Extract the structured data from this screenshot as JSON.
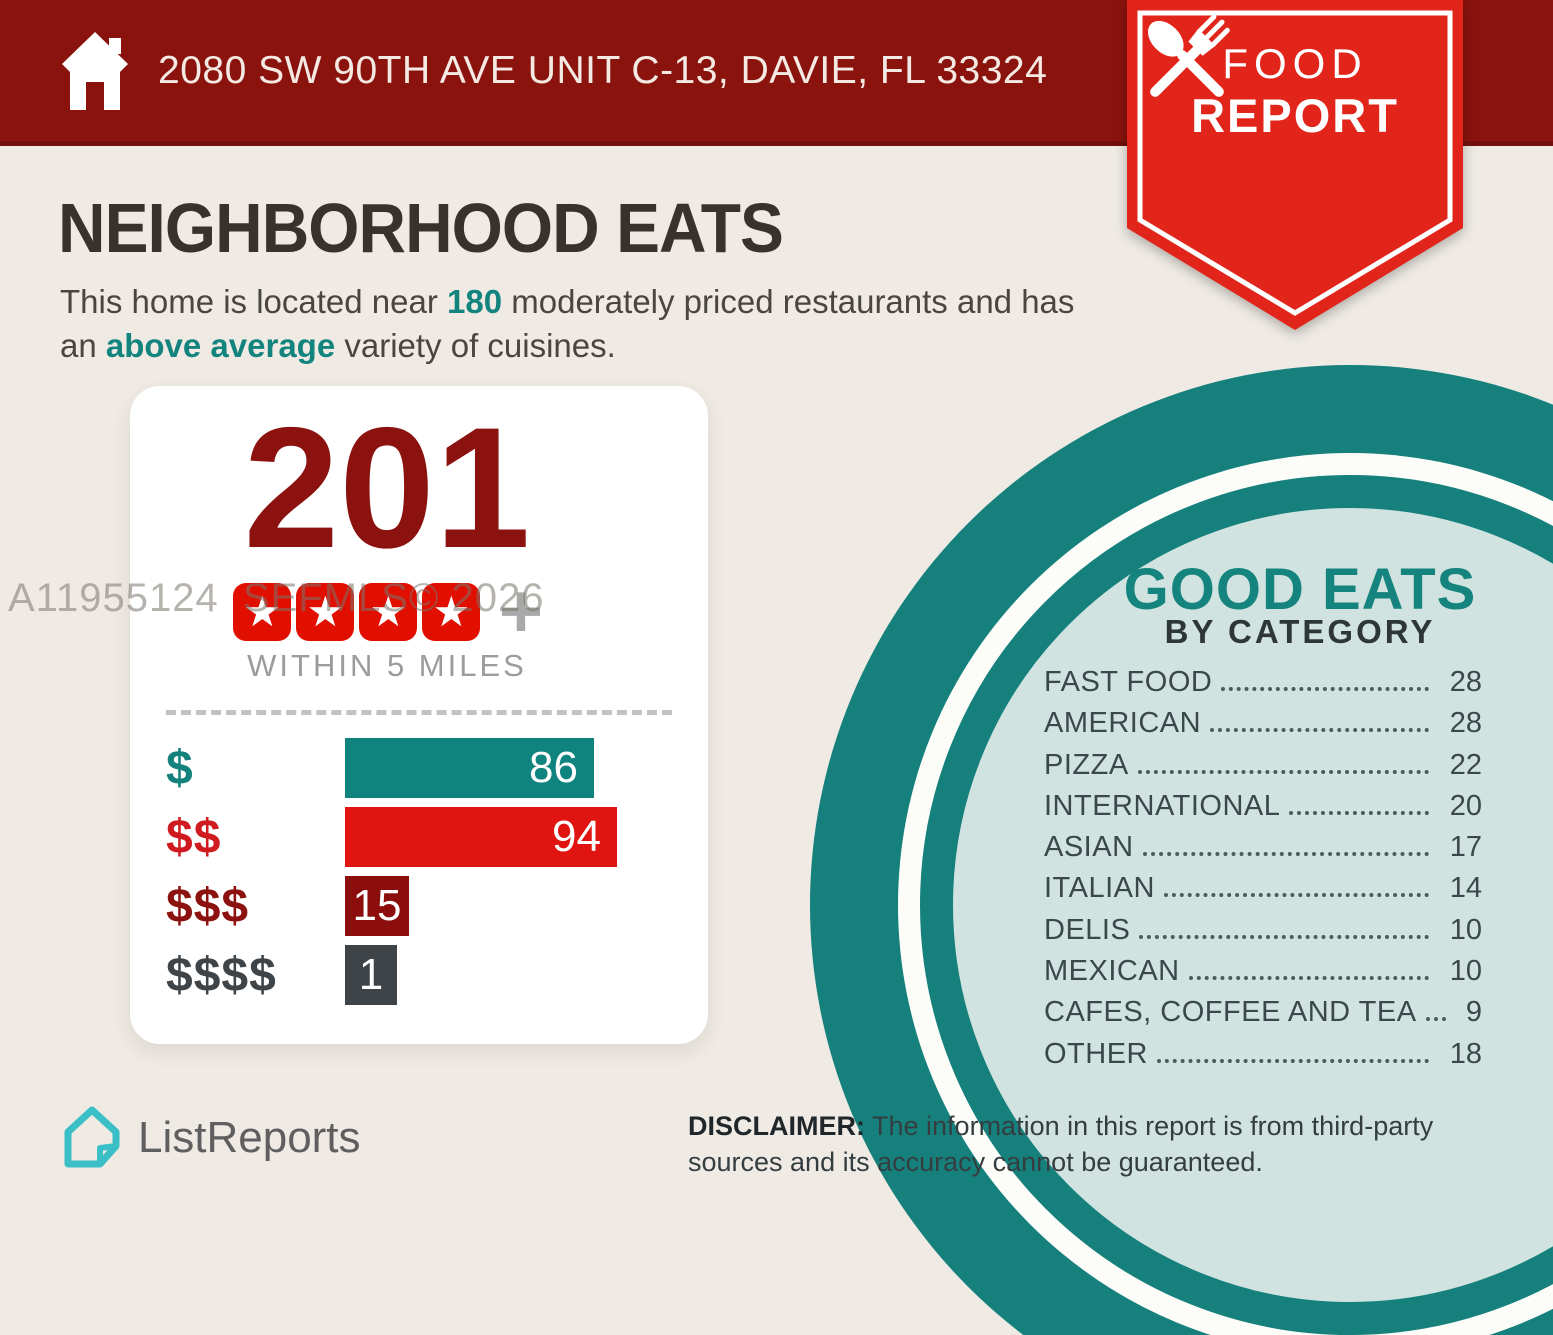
{
  "header": {
    "address": "2080 SW 90TH AVE UNIT C-13, DAVIE, FL 33324",
    "ribbon": {
      "line1": "FOOD",
      "line2": "REPORT"
    }
  },
  "title": "NEIGHBORHOOD EATS",
  "intro": {
    "pre": "This home is located near ",
    "count": "180",
    "mid": " moderately priced restaurants and has an ",
    "highlight": "above average",
    "post": " variety of cuisines."
  },
  "stats_card": {
    "total": "201",
    "rating_stars": 4,
    "rating_suffix": "+",
    "radius_label": "WITHIN 5 MILES",
    "price_bars": [
      {
        "label": "$",
        "value": 86,
        "bar_color": "#0f837e",
        "label_color": "#13827c"
      },
      {
        "label": "$$",
        "value": 94,
        "bar_color": "#e01410",
        "label_color": "#cf1b1f"
      },
      {
        "label": "$$$",
        "value": 15,
        "bar_color": "#8c0e0c",
        "label_color": "#8c1210"
      },
      {
        "label": "$$$$",
        "value": 1,
        "bar_color": "#3d4347",
        "label_color": "#3e4448"
      }
    ]
  },
  "good_eats": {
    "title": "GOOD EATS",
    "subtitle": "BY CATEGORY",
    "categories": [
      {
        "label": "FAST FOOD",
        "value": 28
      },
      {
        "label": "AMERICAN",
        "value": 28
      },
      {
        "label": "PIZZA",
        "value": 22
      },
      {
        "label": "INTERNATIONAL",
        "value": 20
      },
      {
        "label": "ASIAN",
        "value": 17
      },
      {
        "label": "ITALIAN",
        "value": 14
      },
      {
        "label": "DELIS",
        "value": 10
      },
      {
        "label": "MEXICAN",
        "value": 10
      },
      {
        "label": "CAFES, COFFEE AND TEA",
        "value": 9
      },
      {
        "label": "OTHER",
        "value": 18
      }
    ]
  },
  "watermark": "A11955124  SEFMLS© 2026",
  "footer": {
    "brand": "ListReports",
    "disclaimer_label": "DISCLAIMER:",
    "disclaimer_text": " The information in this report is from third-party sources and its accuracy cannot be guaranteed."
  },
  "colors": {
    "banner_red": "#8a130e",
    "ribbon_red": "#e2251a",
    "accent_teal": "#12837d",
    "dark_red": "#8c1210",
    "mint": "#d0e3e0",
    "background": "#efeae4"
  },
  "chart_data": [
    {
      "type": "bar",
      "orientation": "horizontal",
      "title": "201 restaurants within 5 miles by price level",
      "categories": [
        "$",
        "$$",
        "$$$",
        "$$$$"
      ],
      "values": [
        86,
        94,
        15,
        1
      ],
      "colors": [
        "#0f837e",
        "#e01410",
        "#8c0e0c",
        "#3d4347"
      ],
      "xlabel": "",
      "ylabel": "",
      "grid": false,
      "legend": "none"
    },
    {
      "type": "table",
      "title": "GOOD EATS BY CATEGORY",
      "categories": [
        "FAST FOOD",
        "AMERICAN",
        "PIZZA",
        "INTERNATIONAL",
        "ASIAN",
        "ITALIAN",
        "DELIS",
        "MEXICAN",
        "CAFES, COFFEE AND TEA",
        "OTHER"
      ],
      "values": [
        28,
        28,
        22,
        20,
        17,
        14,
        10,
        10,
        9,
        18
      ]
    }
  ]
}
